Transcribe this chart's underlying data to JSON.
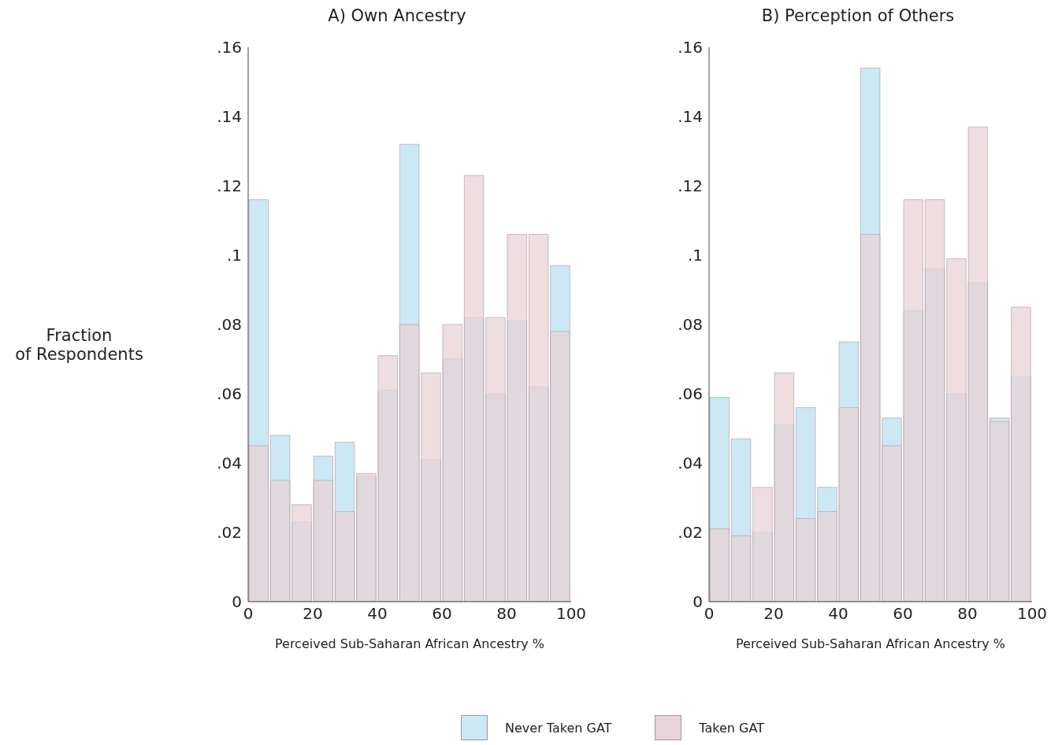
{
  "chart_data": [
    {
      "type": "histogram",
      "title": "A) Own Ancestry",
      "xlabel": "Perceived Sub-Saharan African Ancestry %",
      "ylabel": "Fraction\nof Respondents",
      "bins": [
        0,
        6.667,
        13.333,
        20,
        26.667,
        33.333,
        40,
        46.667,
        53.333,
        60,
        66.667,
        73.333,
        80,
        86.667,
        93.333,
        100
      ],
      "xlim": [
        0,
        100
      ],
      "xticks": [
        0,
        20,
        40,
        60,
        80,
        100
      ],
      "ylim": [
        0,
        0.16
      ],
      "yticks": [
        0,
        {
          "value": 0.02,
          "label": ".02"
        },
        {
          "value": 0.04,
          "label": ".04"
        },
        {
          "value": 0.06,
          "label": ".06"
        },
        {
          "value": 0.08,
          "label": ".08"
        },
        {
          "value": 0.1,
          "label": ".1"
        },
        {
          "value": 0.12,
          "label": ".12"
        },
        {
          "value": 0.14,
          "label": ".14"
        },
        {
          "value": 0.16,
          "label": ".16"
        }
      ],
      "legend": "bottom",
      "series": [
        {
          "name": "Never Taken GAT",
          "color": "#cce8f4",
          "values": [
            0.116,
            0.048,
            0.023,
            0.042,
            0.046,
            0.036,
            0.061,
            0.132,
            0.041,
            0.07,
            0.082,
            0.06,
            0.081,
            0.062,
            0.097
          ]
        },
        {
          "name": "Taken GAT",
          "color": "#e8d3d6",
          "values": [
            0.045,
            0.035,
            0.028,
            0.035,
            0.026,
            0.037,
            0.071,
            0.08,
            0.066,
            0.08,
            0.123,
            0.082,
            0.106,
            0.106,
            0.078
          ]
        }
      ]
    },
    {
      "type": "histogram",
      "title": "B) Perception of Others",
      "xlabel": "Perceived Sub-Saharan African Ancestry %",
      "bins": [
        0,
        6.667,
        13.333,
        20,
        26.667,
        33.333,
        40,
        46.667,
        53.333,
        60,
        66.667,
        73.333,
        80,
        86.667,
        93.333,
        100
      ],
      "xlim": [
        0,
        100
      ],
      "xticks": [
        0,
        20,
        40,
        60,
        80,
        100
      ],
      "ylim": [
        0,
        0.16
      ],
      "yticks": [
        0,
        {
          "value": 0.02,
          "label": ".02"
        },
        {
          "value": 0.04,
          "label": ".04"
        },
        {
          "value": 0.06,
          "label": ".06"
        },
        {
          "value": 0.08,
          "label": ".08"
        },
        {
          "value": 0.1,
          "label": ".1"
        },
        {
          "value": 0.12,
          "label": ".12"
        },
        {
          "value": 0.14,
          "label": ".14"
        },
        {
          "value": 0.16,
          "label": ".16"
        }
      ],
      "series": [
        {
          "color": "#cce8f4",
          "values": [
            0.059,
            0.047,
            0.02,
            0.051,
            0.056,
            0.033,
            0.075,
            0.154,
            0.053,
            0.084,
            0.096,
            0.06,
            0.092,
            0.053,
            0.065
          ]
        },
        {
          "color": "#e8d3d6",
          "values": [
            0.021,
            0.019,
            0.033,
            0.066,
            0.024,
            0.026,
            0.056,
            0.106,
            0.045,
            0.116,
            0.116,
            0.099,
            0.137,
            0.052,
            0.085
          ]
        }
      ]
    }
  ]
}
